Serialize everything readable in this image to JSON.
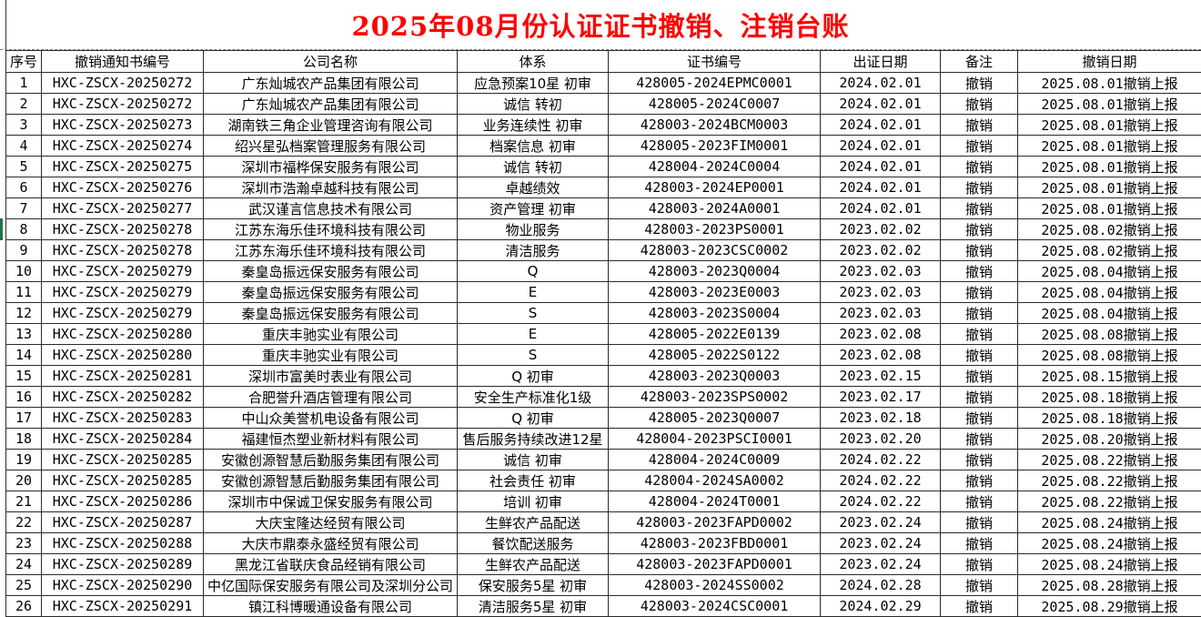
{
  "title": "2025年08月份认证证书撤销、注销台账",
  "title_color": "#FF0000",
  "selection": {
    "row": 8,
    "color": "#217346"
  },
  "table": {
    "columns": [
      "序号",
      "撤销通知书编号",
      "公司名称",
      "体系",
      "证书编号",
      "出证日期",
      "备注",
      "撤销日期"
    ],
    "rows": [
      [
        "1",
        "HXC-ZSCX-20250272",
        "广东灿城农产品集团有限公司",
        "应急预案10星 初审",
        "428005-2024EPMC0001",
        "2024.02.01",
        "撤销",
        "2025.08.01撤销上报"
      ],
      [
        "2",
        "HXC-ZSCX-20250272",
        "广东灿城农产品集团有限公司",
        "诚信 转初",
        "428005-2024C0007",
        "2024.02.01",
        "撤销",
        "2025.08.01撤销上报"
      ],
      [
        "3",
        "HXC-ZSCX-20250273",
        "湖南铁三角企业管理咨询有限公司",
        "业务连续性 初审",
        "428003-2024BCM0003",
        "2024.02.01",
        "撤销",
        "2025.08.01撤销上报"
      ],
      [
        "4",
        "HXC-ZSCX-20250274",
        "绍兴星弘档案管理服务有限公司",
        "档案信息 初审",
        "428005-2023FIM0001",
        "2024.02.01",
        "撤销",
        "2025.08.01撤销上报"
      ],
      [
        "5",
        "HXC-ZSCX-20250275",
        "深圳市福桦保安服务有限公司",
        "诚信 转初",
        "428004-2024C0004",
        "2024.02.01",
        "撤销",
        "2025.08.01撤销上报"
      ],
      [
        "6",
        "HXC-ZSCX-20250276",
        "深圳市浩瀚卓越科技有限公司",
        "卓越绩效",
        "428003-2024EP0001",
        "2024.02.01",
        "撤销",
        "2025.08.01撤销上报"
      ],
      [
        "7",
        "HXC-ZSCX-20250277",
        "武汉谨言信息技术有限公司",
        "资产管理 初审",
        "428003-2024A0001",
        "2024.02.01",
        "撤销",
        "2025.08.01撤销上报"
      ],
      [
        "8",
        "HXC-ZSCX-20250278",
        "江苏东海乐佳环境科技有限公司",
        "物业服务",
        "428003-2023PS0001",
        "2023.02.02",
        "撤销",
        "2025.08.02撤销上报"
      ],
      [
        "9",
        "HXC-ZSCX-20250278",
        "江苏东海乐佳环境科技有限公司",
        "清洁服务",
        "428003-2023CSC0002",
        "2023.02.02",
        "撤销",
        "2025.08.02撤销上报"
      ],
      [
        "10",
        "HXC-ZSCX-20250279",
        "秦皇岛振远保安服务有限公司",
        "Q",
        "428003-2023Q0004",
        "2023.02.03",
        "撤销",
        "2025.08.04撤销上报"
      ],
      [
        "11",
        "HXC-ZSCX-20250279",
        "秦皇岛振远保安服务有限公司",
        "E",
        "428003-2023E0003",
        "2023.02.03",
        "撤销",
        "2025.08.04撤销上报"
      ],
      [
        "12",
        "HXC-ZSCX-20250279",
        "秦皇岛振远保安服务有限公司",
        "S",
        "428003-2023S0004",
        "2023.02.03",
        "撤销",
        "2025.08.04撤销上报"
      ],
      [
        "13",
        "HXC-ZSCX-20250280",
        "重庆丰驰实业有限公司",
        "E",
        "428005-2022E0139",
        "2023.02.08",
        "撤销",
        "2025.08.08撤销上报"
      ],
      [
        "14",
        "HXC-ZSCX-20250280",
        "重庆丰驰实业有限公司",
        "S",
        "428005-2022S0122",
        "2023.02.08",
        "撤销",
        "2025.08.08撤销上报"
      ],
      [
        "15",
        "HXC-ZSCX-20250281",
        "深圳市富美时表业有限公司",
        "Q 初审",
        "428003-2023Q0003",
        "2023.02.15",
        "撤销",
        "2025.08.15撤销上报"
      ],
      [
        "16",
        "HXC-ZSCX-20250282",
        "合肥誉升酒店管理有限公司",
        "安全生产标准化1级",
        "428003-2023SPS0002",
        "2023.02.17",
        "撤销",
        "2025.08.18撤销上报"
      ],
      [
        "17",
        "HXC-ZSCX-20250283",
        "中山众美誉机电设备有限公司",
        "Q 初审",
        "428005-2023Q0007",
        "2023.02.18",
        "撤销",
        "2025.08.18撤销上报"
      ],
      [
        "18",
        "HXC-ZSCX-20250284",
        "福建恒杰塑业新材料有限公司",
        "售后服务持续改进12星",
        "428004-2023PSCI0001",
        "2023.02.20",
        "撤销",
        "2025.08.20撤销上报"
      ],
      [
        "19",
        "HXC-ZSCX-20250285",
        "安徽创源智慧后勤服务集团有限公司",
        "诚信 初审",
        "428004-2024C0009",
        "2024.02.22",
        "撤销",
        "2025.08.22撤销上报"
      ],
      [
        "20",
        "HXC-ZSCX-20250285",
        "安徽创源智慧后勤服务集团有限公司",
        "社会责任 初审",
        "428004-2024SA0002",
        "2024.02.22",
        "撤销",
        "2025.08.22撤销上报"
      ],
      [
        "21",
        "HXC-ZSCX-20250286",
        "深圳市中保诚卫保安服务有限公司",
        "培训 初审",
        "428004-2024T0001",
        "2024.02.22",
        "撤销",
        "2025.08.22撤销上报"
      ],
      [
        "22",
        "HXC-ZSCX-20250287",
        "大庆宝隆达经贸有限公司",
        "生鲜农产品配送",
        "428003-2023FAPD0002",
        "2023.02.24",
        "撤销",
        "2025.08.24撤销上报"
      ],
      [
        "23",
        "HXC-ZSCX-20250288",
        "大庆市鼎泰永盛经贸有限公司",
        "餐饮配送服务",
        "428003-2023FBD0001",
        "2023.02.24",
        "撤销",
        "2025.08.24撤销上报"
      ],
      [
        "24",
        "HXC-ZSCX-20250289",
        "黑龙江省联庆食品经销有限公司",
        "生鲜农产品配送",
        "428003-2023FAPD0001",
        "2023.02.24",
        "撤销",
        "2025.08.24撤销上报"
      ],
      [
        "25",
        "HXC-ZSCX-20250290",
        "中亿国际保安服务有限公司及深圳分公司",
        "保安服务5星 初审",
        "428003-2024SS0002",
        "2024.02.28",
        "撤销",
        "2025.08.28撤销上报"
      ],
      [
        "26",
        "HXC-ZSCX-20250291",
        "镇江科博暖通设备有限公司",
        "清洁服务5星 初审",
        "428003-2024CSC0001",
        "2024.02.29",
        "撤销",
        "2025.08.29撤销上报"
      ]
    ]
  }
}
